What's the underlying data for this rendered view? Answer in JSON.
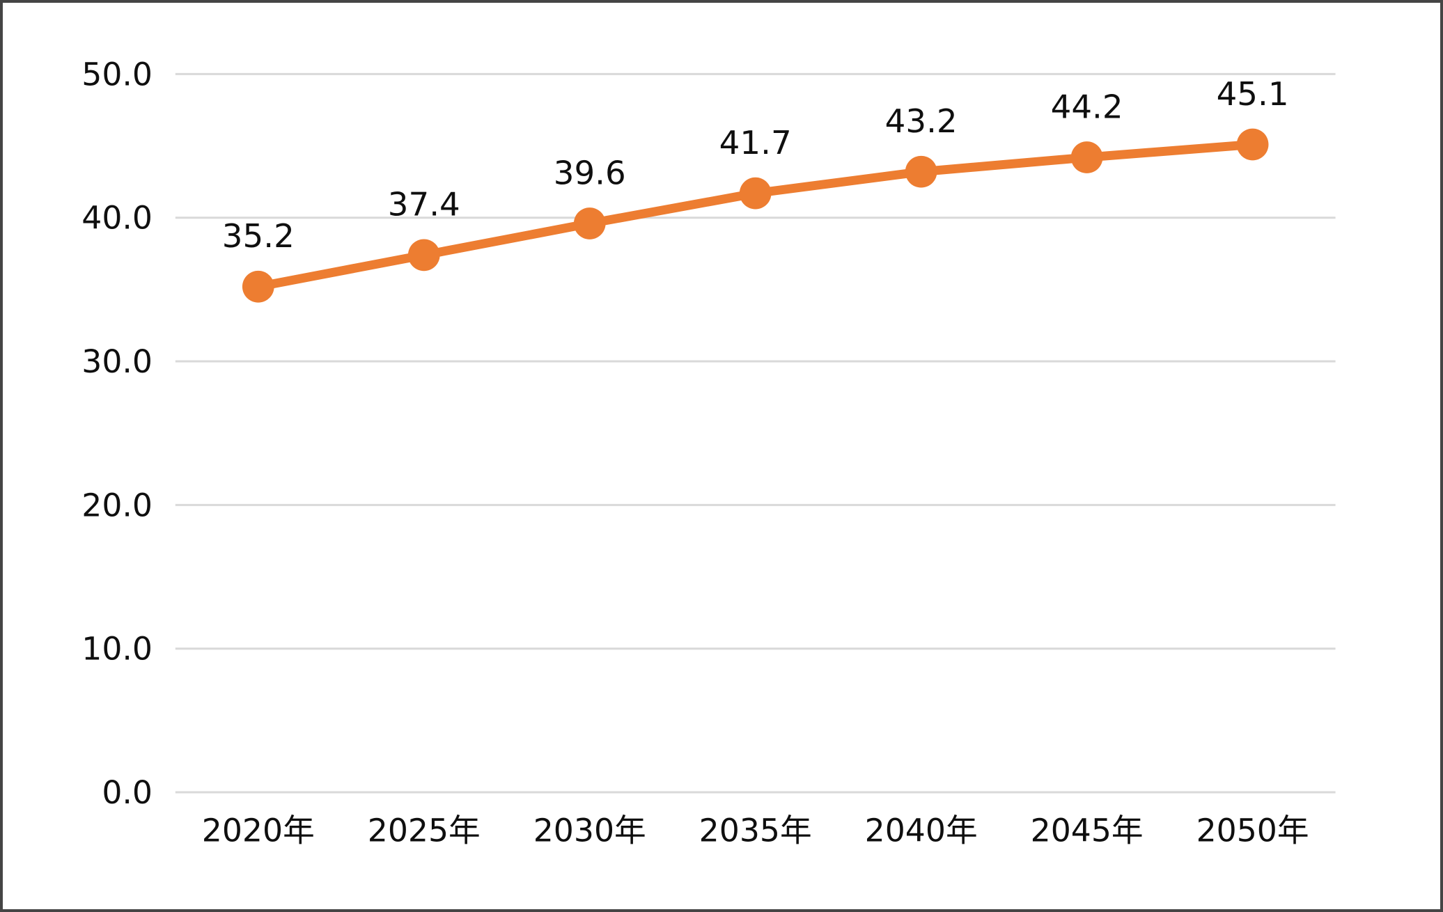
{
  "chart_data": {
    "type": "line",
    "title": "",
    "xlabel": "",
    "ylabel": "",
    "categories": [
      "2020年",
      "2025年",
      "2030年",
      "2035年",
      "2040年",
      "2045年",
      "2050年"
    ],
    "series": [
      {
        "name": "series-1",
        "values": [
          35.2,
          37.4,
          39.6,
          41.7,
          43.2,
          44.2,
          45.1
        ],
        "data_labels": [
          "35.2",
          "37.4",
          "39.6",
          "41.7",
          "43.2",
          "44.2",
          "45.1"
        ]
      }
    ],
    "ylim": [
      0,
      50
    ],
    "y_ticks": [
      0,
      10,
      20,
      30,
      40,
      50
    ],
    "y_tick_labels": [
      "0.0",
      "10.0",
      "20.0",
      "30.0",
      "40.0",
      "50.0"
    ],
    "grid": "horizontal-only",
    "legend_position": "none",
    "marker_style": "filled-circle",
    "colors": {
      "series": "#ED7D31",
      "gridline": "#D9D9D9",
      "label_text": "#0F0F0F",
      "background": "#FFFFFF",
      "frame_border": "#454545"
    }
  }
}
